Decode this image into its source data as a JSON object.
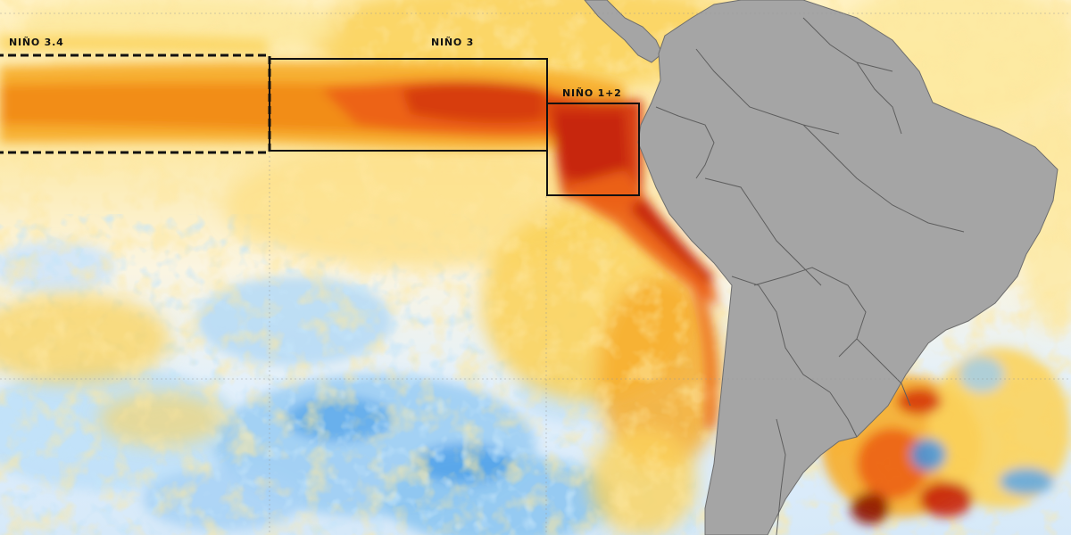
{
  "regions": {
    "nino34": {
      "label": "NIÑO 3.4"
    },
    "nino3": {
      "label": "NIÑO 3"
    },
    "nino12": {
      "label": "NIÑO 1+2"
    }
  },
  "colors": {
    "cold_deep": "#3f97e6",
    "cold": "#9ccdf3",
    "neutral": "#fdfbf2",
    "warm_light": "#fde9a0",
    "warm": "#fbd35c",
    "warm_strong": "#f7ad2a",
    "hot": "#f28a17",
    "hotter": "#ec6214",
    "hottest": "#c62408",
    "extreme": "#8e1202",
    "land": "#a5a5a5",
    "borders": "#5e5e5e",
    "box_outline": "#111111"
  },
  "legend": {
    "visible": false
  }
}
